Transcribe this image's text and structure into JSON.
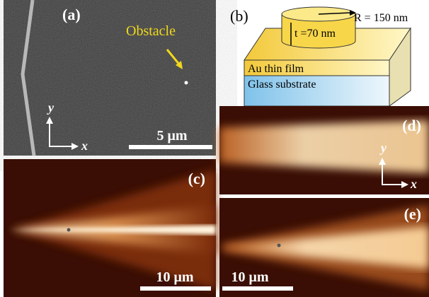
{
  "panels": {
    "a": {
      "label": "(a)",
      "annotation": "Obstacle",
      "axis_y": "y",
      "axis_x": "x",
      "scale_bar": "5 μm"
    },
    "b": {
      "label": "(b)",
      "radius": "R = 150 nm",
      "thickness": "t =70 nm",
      "film": "Au thin film",
      "substrate": "Glass substrate"
    },
    "c": {
      "label": "(c)",
      "scale_bar": "10 μm"
    },
    "d": {
      "label": "(d)",
      "axis_y": "y",
      "axis_x": "x"
    },
    "e": {
      "label": "(e)",
      "scale_bar": "10 μm"
    }
  }
}
